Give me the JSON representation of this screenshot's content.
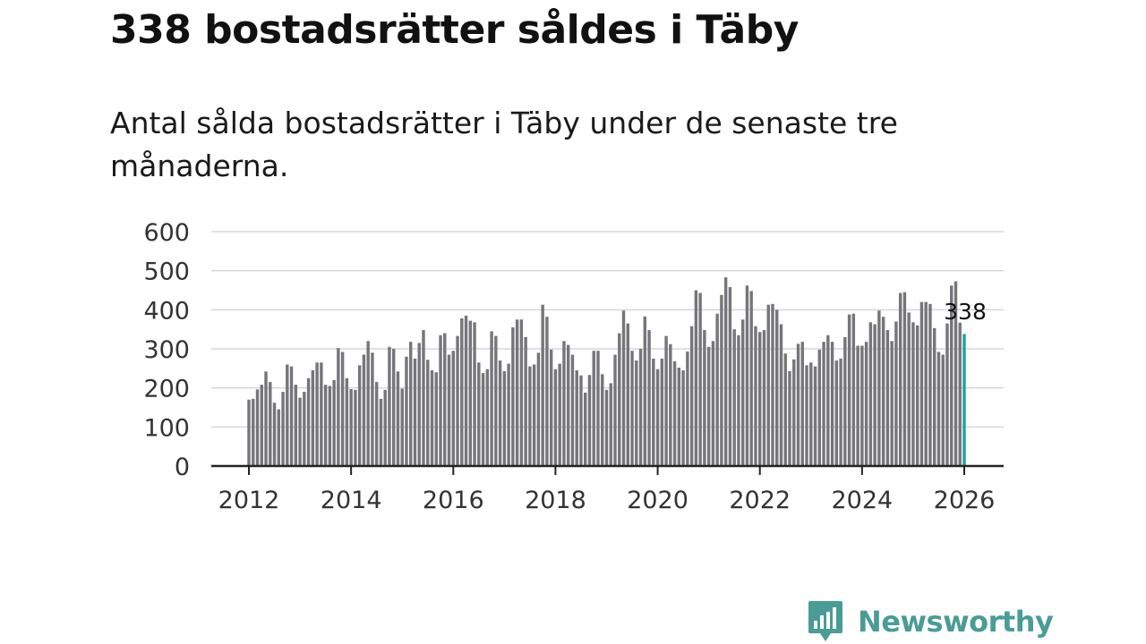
{
  "header": {
    "title": "338 bostadsrätter såldes i Täby",
    "subtitle": "Antal sålda bostadsrätter i Täby under de senaste tre månaderna."
  },
  "brand": {
    "name": "Newsworthy",
    "color": "#4a9c96"
  },
  "colors": {
    "bar": "#76757b",
    "highlight": "#1aa3a0",
    "grid": "#d6d6d6",
    "axis": "#222222"
  },
  "chart_data": {
    "type": "bar",
    "title": "Antal sålda bostadsrätter i Täby under de senaste tre månaderna.",
    "xlabel": "",
    "ylabel": "",
    "ylim": [
      0,
      600
    ],
    "yticks": [
      0,
      100,
      200,
      300,
      400,
      500,
      600
    ],
    "xticks": [
      2012,
      2014,
      2016,
      2018,
      2020,
      2022,
      2024,
      2026
    ],
    "x_start": 2012.0,
    "x_step": 0.0833,
    "grid": true,
    "highlight_label": "338",
    "values": [
      170,
      172,
      196,
      208,
      242,
      215,
      162,
      145,
      190,
      260,
      255,
      208,
      175,
      190,
      225,
      245,
      265,
      265,
      208,
      205,
      220,
      302,
      292,
      225,
      197,
      195,
      258,
      285,
      320,
      290,
      215,
      172,
      195,
      305,
      300,
      242,
      198,
      280,
      318,
      275,
      315,
      348,
      272,
      245,
      240,
      335,
      340,
      285,
      295,
      333,
      378,
      385,
      372,
      368,
      265,
      238,
      248,
      345,
      333,
      270,
      243,
      262,
      355,
      375,
      375,
      330,
      255,
      260,
      290,
      413,
      382,
      298,
      248,
      262,
      320,
      310,
      285,
      245,
      232,
      188,
      233,
      295,
      295,
      235,
      195,
      212,
      285,
      340,
      398,
      365,
      295,
      270,
      300,
      383,
      348,
      275,
      248,
      275,
      333,
      312,
      268,
      252,
      245,
      293,
      358,
      450,
      443,
      348,
      305,
      320,
      390,
      438,
      483,
      458,
      350,
      335,
      375,
      462,
      448,
      358,
      343,
      348,
      413,
      415,
      400,
      363,
      288,
      243,
      273,
      313,
      318,
      258,
      265,
      255,
      298,
      318,
      335,
      318,
      270,
      275,
      330,
      388,
      390,
      308,
      308,
      318,
      368,
      363,
      398,
      382,
      348,
      320,
      370,
      443,
      445,
      393,
      368,
      360,
      420,
      420,
      415,
      353,
      292,
      285,
      365,
      462,
      473,
      367,
      338
    ],
    "highlight_index": 168
  }
}
